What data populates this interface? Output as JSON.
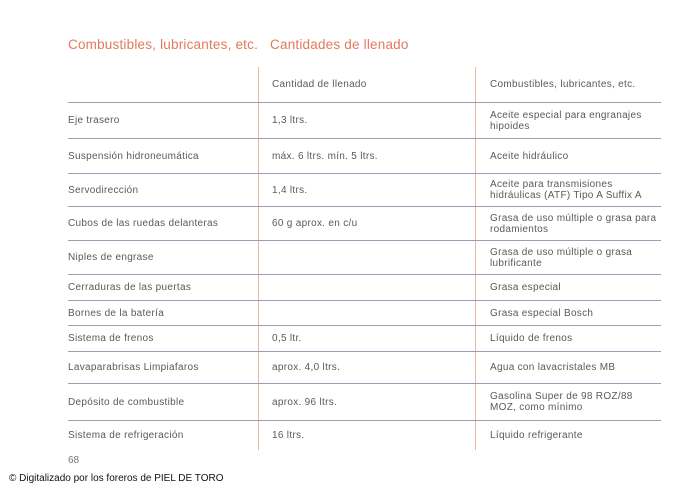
{
  "title": {
    "part1": "Combustibles, lubricantes, etc.",
    "part2": "Cantidades de llenado"
  },
  "table": {
    "headers": [
      "",
      "Cantidad de llenado",
      "Combustibles, lubricantes, etc."
    ],
    "rows": [
      {
        "item": "Eje trasero",
        "qty": "1,3 ltrs.",
        "product": "Aceite especial para engranajes hipoides"
      },
      {
        "item": "Suspensión hidroneumática",
        "qty": "máx. 6 ltrs. mín. 5 ltrs.",
        "product": "Aceite hidráulico"
      },
      {
        "item": "Servodirección",
        "qty": "1,4 ltrs.",
        "product": "Aceite para transmisiones hidráulicas (ATF) Tipo A Suffix A"
      },
      {
        "item": "Cubos de las ruedas delanteras",
        "qty": "60 g aprox. en c/u",
        "product": "Grasa de uso múltiple o grasa para rodamientos"
      },
      {
        "item": "Niples de engrase",
        "qty": "",
        "product": "Grasa de uso múltiple o grasa lubrificante"
      },
      {
        "item": "Cerraduras de las puertas",
        "qty": "",
        "product": "Grasa especial"
      },
      {
        "item": "Bornes de la batería",
        "qty": "",
        "product": "Grasa especial Bosch"
      },
      {
        "item": "Sistema de frenos",
        "qty": "0,5 ltr.",
        "product": "Líquido de frenos"
      },
      {
        "item": "Lavaparabrisas Limpiafaros",
        "qty": "aprox. 4,0 ltrs.",
        "product": "Agua con lavacristales MB"
      },
      {
        "item": "Depósito de combustible",
        "qty": "aprox. 96 ltrs.",
        "product": "Gasolina Super de 98 ROZ/88 MOZ, como mínimo"
      },
      {
        "item": "Sistema de refrigeración",
        "qty": "16 ltrs.",
        "product": "Líquido refrigerante"
      }
    ]
  },
  "page_number": "68",
  "credit": "© Digitalizado por los foreros de PIEL DE TORO"
}
